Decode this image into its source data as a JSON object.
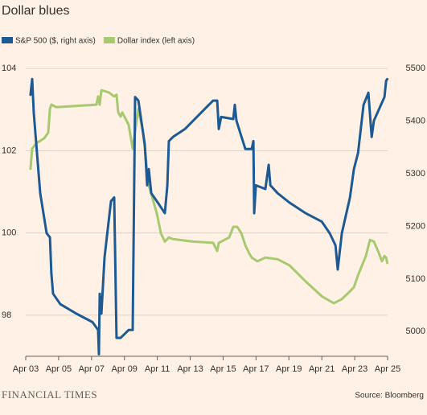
{
  "chart_data": {
    "type": "line",
    "title": "Dollar blues",
    "brand": "FINANCIAL TIMES",
    "source": "Source: Bloomberg",
    "xlim": [
      3,
      25
    ],
    "xticks": [
      {
        "value": 3,
        "label": "Apr 03"
      },
      {
        "value": 5,
        "label": "Apr 05"
      },
      {
        "value": 7,
        "label": "Apr 07"
      },
      {
        "value": 9,
        "label": "Apr 09"
      },
      {
        "value": 11,
        "label": "Apr 11"
      },
      {
        "value": 13,
        "label": "Apr 13"
      },
      {
        "value": 15,
        "label": "Apr 15"
      },
      {
        "value": 17,
        "label": "Apr 17"
      },
      {
        "value": 19,
        "label": "Apr 19"
      },
      {
        "value": 21,
        "label": "Apr 21"
      },
      {
        "value": 23,
        "label": "Apr 23"
      },
      {
        "value": 25,
        "label": "Apr 25"
      }
    ],
    "ylim": [
      97,
      104.1
    ],
    "yticks": [
      98,
      100,
      102,
      104
    ],
    "y2lim": [
      4953,
      5508
    ],
    "y2ticks": [
      5000,
      5100,
      5200,
      5300,
      5400,
      5500
    ],
    "grid": true,
    "series": [
      {
        "name": "S&P 500 ($, right axis)",
        "color": "#1d5a93",
        "axis": "y2",
        "x": [
          3.29,
          3.39,
          3.49,
          3.88,
          4.27,
          4.47,
          4.56,
          4.66,
          5.1,
          6.08,
          7.06,
          7.4,
          7.45,
          7.5,
          7.6,
          7.79,
          8.18,
          8.38,
          8.52,
          8.77,
          9.26,
          9.5,
          9.65,
          9.85,
          10.24,
          10.38,
          10.48,
          10.63,
          10.97,
          11.46,
          11.61,
          11.7,
          11.95,
          12.68,
          13.66,
          14.39,
          14.64,
          14.74,
          14.88,
          15.62,
          15.71,
          15.81,
          16.35,
          16.74,
          16.84,
          16.89,
          16.99,
          17.57,
          17.77,
          17.87,
          18.31,
          19.04,
          20.02,
          21.0,
          21.48,
          21.83,
          21.97,
          22.22,
          22.71,
          22.95,
          23.2,
          23.54,
          23.83,
          24.03,
          24.17,
          24.81,
          24.91,
          24.98
        ],
        "values": [
          5450,
          5480,
          5416,
          5263,
          5187,
          5179,
          5110,
          5072,
          5052,
          5034,
          5018,
          5003,
          4957,
          5072,
          5034,
          5141,
          5248,
          5255,
          4988,
          4988,
          5003,
          5003,
          5446,
          5439,
          5355,
          5278,
          5309,
          5263,
          5248,
          5225,
          5278,
          5362,
          5370,
          5385,
          5416,
          5439,
          5439,
          5385,
          5408,
          5404,
          5431,
          5401,
          5347,
          5347,
          5362,
          5225,
          5278,
          5271,
          5317,
          5278,
          5263,
          5245,
          5225,
          5209,
          5187,
          5164,
          5118,
          5187,
          5255,
          5309,
          5339,
          5431,
          5454,
          5370,
          5401,
          5446,
          5477,
          5480
        ]
      },
      {
        "name": "Dollar index (left axis)",
        "color": "#a7c96f",
        "axis": "y",
        "x": [
          3.29,
          3.39,
          3.64,
          4.12,
          4.37,
          4.47,
          4.56,
          4.86,
          7.3,
          7.4,
          7.5,
          7.6,
          8.04,
          8.38,
          8.52,
          8.62,
          8.77,
          8.87,
          9.26,
          9.5,
          9.85,
          10.14,
          10.48,
          10.82,
          10.97,
          11.22,
          11.46,
          11.7,
          11.95,
          13.17,
          14.39,
          14.64,
          14.74,
          15.37,
          15.62,
          15.86,
          16.11,
          16.35,
          16.59,
          16.74,
          16.89,
          17.08,
          17.57,
          18.31,
          19.04,
          20.02,
          21.0,
          21.73,
          22.22,
          22.71,
          22.95,
          23.2,
          23.68,
          23.93,
          24.17,
          24.42,
          24.66,
          24.81,
          24.91,
          24.98
        ],
        "values": [
          101.56,
          102.05,
          102.18,
          102.3,
          102.44,
          103.02,
          103.12,
          103.06,
          103.12,
          103.32,
          103.12,
          103.47,
          103.42,
          103.32,
          103.36,
          102.93,
          102.83,
          102.93,
          102.63,
          102.05,
          103.02,
          102.44,
          101.16,
          100.68,
          100.48,
          99.99,
          99.79,
          99.89,
          99.85,
          99.79,
          99.76,
          99.56,
          99.76,
          99.89,
          100.15,
          100.15,
          99.99,
          99.7,
          99.5,
          99.4,
          99.36,
          99.31,
          99.4,
          99.36,
          99.21,
          98.82,
          98.46,
          98.29,
          98.39,
          98.58,
          98.68,
          98.97,
          99.44,
          99.83,
          99.79,
          99.56,
          99.31,
          99.44,
          99.4,
          99.27
        ]
      }
    ]
  }
}
